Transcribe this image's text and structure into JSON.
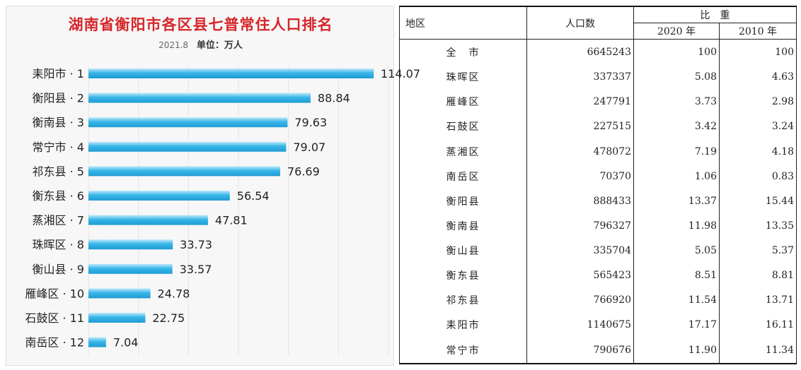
{
  "chart_data": {
    "type": "bar",
    "orientation": "horizontal",
    "title": "湖南省衡阳市各区县七普常住人口排名",
    "date": "2021.8",
    "unit": "单位：万人",
    "categories": [
      "耒阳市 · 1",
      "衡阳县 · 2",
      "衡南县 · 3",
      "常宁市 · 4",
      "祁东县 · 5",
      "衡东县 · 6",
      "蒸湘区 · 7",
      "珠晖区 · 8",
      "衡山县 · 9",
      "雁峰区 · 10",
      "石鼓区 · 11",
      "南岳区 · 12"
    ],
    "values": [
      114.07,
      88.84,
      79.63,
      79.07,
      76.69,
      56.54,
      47.81,
      33.73,
      33.57,
      24.78,
      22.75,
      7.04
    ],
    "value_labels": [
      "114.07",
      "88.84",
      "79.63",
      "79.07",
      "76.69",
      "56.54",
      "47.81",
      "33.73",
      "33.57",
      "24.78",
      "22.75",
      "7.04"
    ],
    "xlim": [
      0,
      120
    ],
    "grid": true,
    "bar_color": "#33b3e6"
  },
  "table": {
    "headers": {
      "region": "地区",
      "population": "人口数",
      "share": "比　重",
      "y2020": "2020 年",
      "y2010": "2010 年"
    },
    "rows": [
      {
        "region": "全　市",
        "population": "6645243",
        "y2020": "100",
        "y2010": "100"
      },
      {
        "region": "珠晖区",
        "population": "337337",
        "y2020": "5.08",
        "y2010": "4.63"
      },
      {
        "region": "雁峰区",
        "population": "247791",
        "y2020": "3.73",
        "y2010": "2.98"
      },
      {
        "region": "石鼓区",
        "population": "227515",
        "y2020": "3.42",
        "y2010": "3.24"
      },
      {
        "region": "蒸湘区",
        "population": "478072",
        "y2020": "7.19",
        "y2010": "4.18"
      },
      {
        "region": "南岳区",
        "population": "70370",
        "y2020": "1.06",
        "y2010": "0.83"
      },
      {
        "region": "衡阳县",
        "population": "888433",
        "y2020": "13.37",
        "y2010": "15.44"
      },
      {
        "region": "衡南县",
        "population": "796327",
        "y2020": "11.98",
        "y2010": "13.35"
      },
      {
        "region": "衡山县",
        "population": "335704",
        "y2020": "5.05",
        "y2010": "5.37"
      },
      {
        "region": "衡东县",
        "population": "565423",
        "y2020": "8.51",
        "y2010": "8.81"
      },
      {
        "region": "祁东县",
        "population": "766920",
        "y2020": "11.54",
        "y2010": "13.71"
      },
      {
        "region": "耒阳市",
        "population": "1140675",
        "y2020": "17.17",
        "y2010": "16.11"
      },
      {
        "region": "常宁市",
        "population": "790676",
        "y2020": "11.90",
        "y2010": "11.34"
      }
    ]
  }
}
